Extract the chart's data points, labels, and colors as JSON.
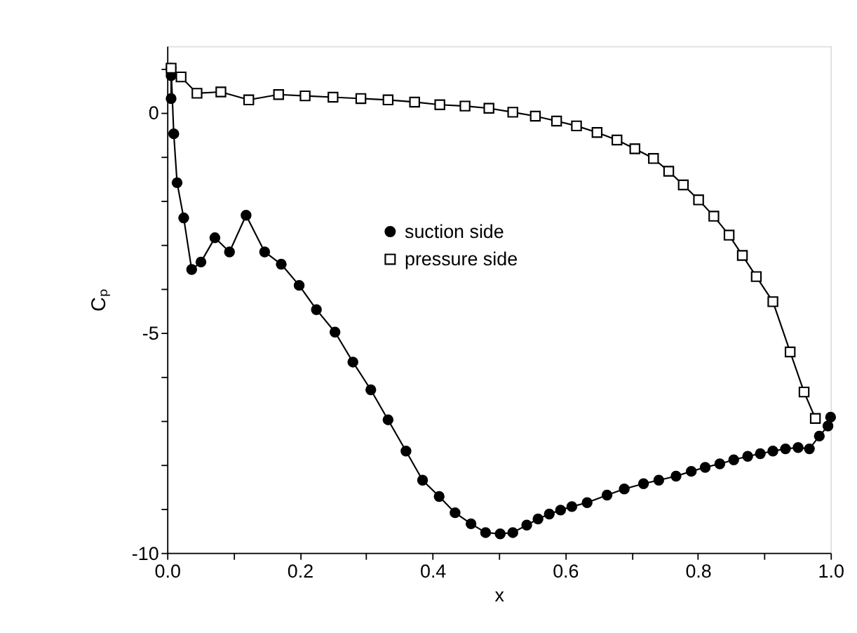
{
  "chart_data": {
    "type": "line",
    "xlabel": "x",
    "ylabel": "Cₚ",
    "xlim": [
      0,
      1
    ],
    "ylim": [
      -10,
      1.5
    ],
    "xticks": [
      {
        "value": 0,
        "label": "0.0"
      },
      {
        "value": 0.1,
        "label": null
      },
      {
        "value": 0.2,
        "label": "0.2"
      },
      {
        "value": 0.3,
        "label": null
      },
      {
        "value": 0.4,
        "label": "0.4"
      },
      {
        "value": 0.5,
        "label": null
      },
      {
        "value": 0.6,
        "label": "0.6"
      },
      {
        "value": 0.7,
        "label": null
      },
      {
        "value": 0.8,
        "label": "0.8"
      },
      {
        "value": 0.9,
        "label": null
      },
      {
        "value": 1,
        "label": "1.0"
      }
    ],
    "yticks": [
      -10,
      {
        "value": -9,
        "label": null
      },
      {
        "value": -8,
        "label": null
      },
      {
        "value": -7,
        "label": null
      },
      {
        "value": -6,
        "label": null
      },
      -5,
      {
        "value": -4,
        "label": null
      },
      {
        "value": -3,
        "label": null
      },
      {
        "value": -2,
        "label": null
      },
      {
        "value": -1,
        "label": null
      },
      0,
      {
        "value": 1,
        "label": null
      }
    ],
    "grid": false,
    "legend": "top",
    "line_style": "solid",
    "series": [
      {
        "name": "suction side",
        "color": "#000000",
        "marker": "circle",
        "x": [
          0.006,
          0.006,
          0.006,
          0.01,
          0.015,
          0.025,
          0.037,
          0.051,
          0.072,
          0.094,
          0.119,
          0.147,
          0.172,
          0.199,
          0.225,
          0.253,
          0.28,
          0.307,
          0.333,
          0.36,
          0.385,
          0.41,
          0.434,
          0.458,
          0.48,
          0.502,
          0.521,
          0.542,
          0.559,
          0.576,
          0.593,
          0.61,
          0.633,
          0.663,
          0.689,
          0.718,
          0.741,
          0.767,
          0.79,
          0.811,
          0.833,
          0.854,
          0.875,
          0.894,
          0.913,
          0.932,
          0.951,
          0.968,
          0.983,
          0.996,
          1.0
        ],
        "values": [
          0.31,
          0.83,
          1.0,
          -0.49,
          -1.6,
          -2.4,
          -3.57,
          -3.4,
          -2.85,
          -3.17,
          -2.34,
          -3.17,
          -3.45,
          -3.93,
          -4.48,
          -4.99,
          -5.67,
          -6.3,
          -6.98,
          -7.69,
          -8.35,
          -8.72,
          -9.09,
          -9.34,
          -9.54,
          -9.57,
          -9.54,
          -9.37,
          -9.23,
          -9.12,
          -9.03,
          -8.95,
          -8.86,
          -8.69,
          -8.55,
          -8.43,
          -8.35,
          -8.26,
          -8.15,
          -8.06,
          -7.98,
          -7.89,
          -7.81,
          -7.75,
          -7.69,
          -7.64,
          -7.61,
          -7.64,
          -7.35,
          -7.12,
          -6.92
        ]
      },
      {
        "name": "pressure side",
        "color": "#000000",
        "marker": "square",
        "x": [
          0.006,
          0.021,
          0.045,
          0.081,
          0.123,
          0.168,
          0.208,
          0.25,
          0.292,
          0.333,
          0.373,
          0.411,
          0.449,
          0.485,
          0.521,
          0.555,
          0.587,
          0.617,
          0.648,
          0.678,
          0.705,
          0.733,
          0.756,
          0.778,
          0.801,
          0.824,
          0.847,
          0.867,
          0.888,
          0.913,
          0.939,
          0.96,
          0.977
        ],
        "values": [
          1.0,
          0.8,
          0.43,
          0.46,
          0.28,
          0.4,
          0.37,
          0.34,
          0.31,
          0.28,
          0.23,
          0.17,
          0.14,
          0.09,
          0.0,
          -0.09,
          -0.2,
          -0.31,
          -0.46,
          -0.63,
          -0.83,
          -1.05,
          -1.34,
          -1.65,
          -1.99,
          -2.36,
          -2.79,
          -3.25,
          -3.73,
          -4.3,
          -5.44,
          -6.35,
          -6.95
        ]
      }
    ]
  }
}
